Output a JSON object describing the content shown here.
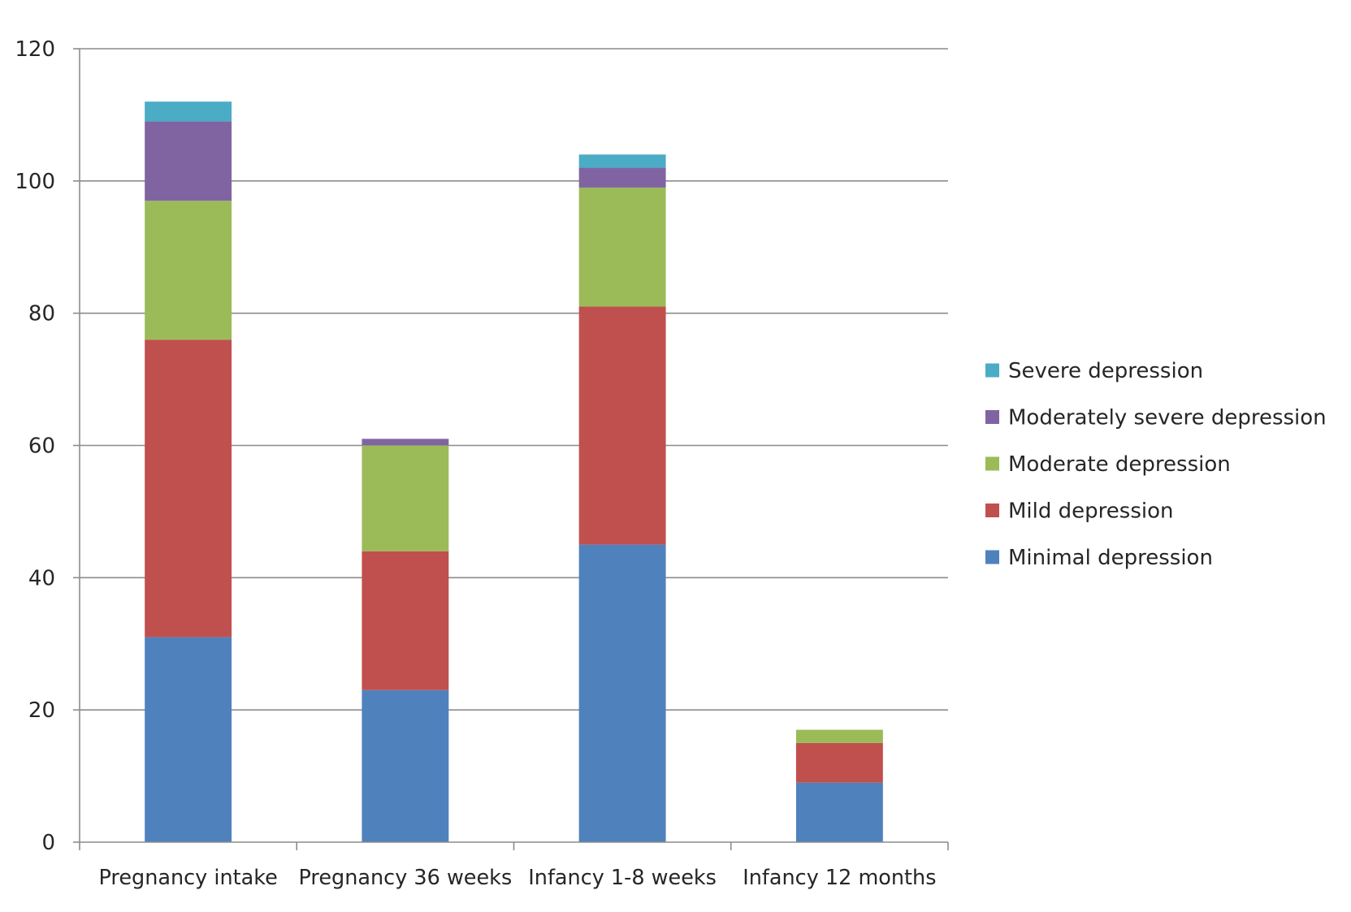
{
  "chart_data": {
    "type": "bar",
    "stacked": true,
    "title": "",
    "xlabel": "",
    "ylabel": "",
    "ylim": [
      0,
      120
    ],
    "yticks": [
      "0",
      "20",
      "40",
      "60",
      "80",
      "100",
      "120"
    ],
    "grid": true,
    "legend_position": "right",
    "categories": [
      "Pregnancy intake",
      "Pregnancy 36 weeks",
      "Infancy 1-8 weeks",
      "Infancy 12 months"
    ],
    "series": [
      {
        "name": "Minimal depression",
        "color": "#4f81bd",
        "values": [
          31,
          23,
          45,
          9
        ]
      },
      {
        "name": "Mild depression",
        "color": "#c0504d",
        "values": [
          45,
          21,
          36,
          6
        ]
      },
      {
        "name": "Moderate depression",
        "color": "#9bbb59",
        "values": [
          21,
          16,
          18,
          2
        ]
      },
      {
        "name": "Moderately severe depression",
        "color": "#8064a2",
        "values": [
          12,
          1,
          3,
          0
        ]
      },
      {
        "name": "Severe depression",
        "color": "#4bacc6",
        "values": [
          3,
          0,
          2,
          0
        ]
      }
    ]
  }
}
